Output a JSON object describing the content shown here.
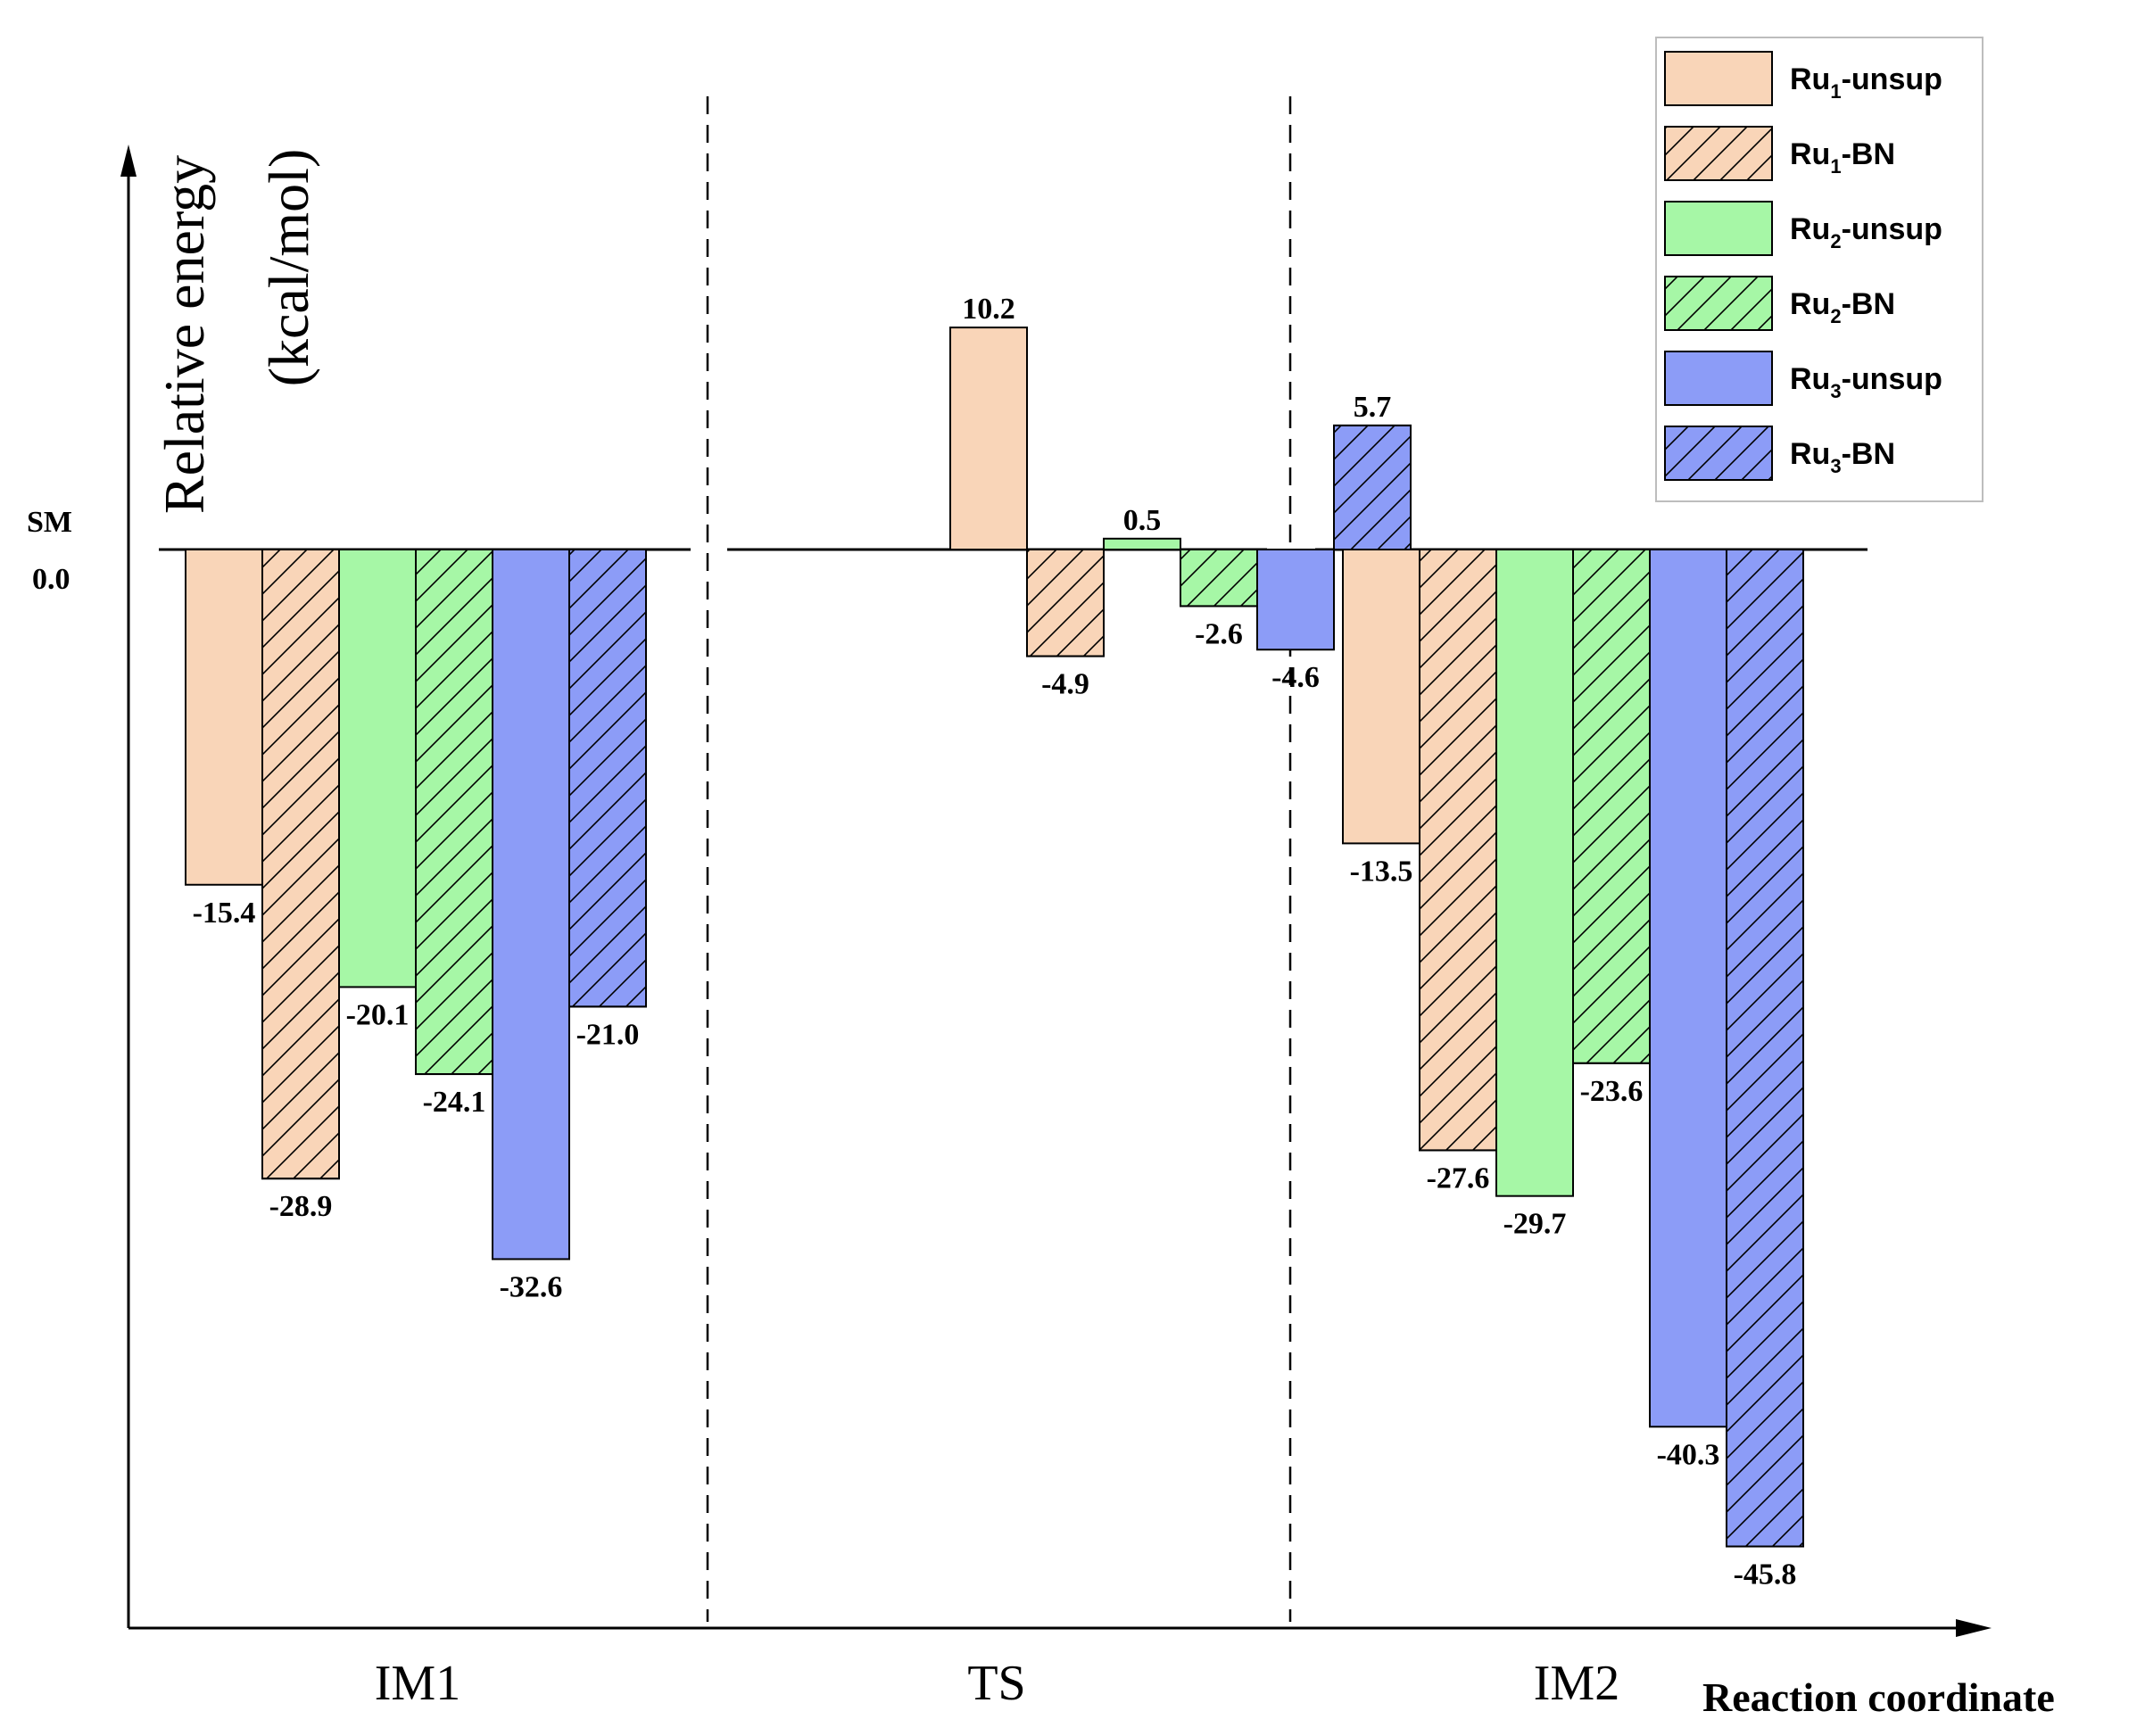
{
  "chart_data": {
    "type": "bar",
    "categories": [
      "IM1",
      "TS",
      "IM2"
    ],
    "ylabel_line1": "Relative energy",
    "ylabel_line2": "(kcal/mol)",
    "xlabel": "Reaction coordinate",
    "baseline_label_1": "SM",
    "baseline_label_2": "0.0",
    "ylim": [
      -50,
      12
    ],
    "legend_position": "top-right",
    "series": [
      {
        "name_base": "Ru",
        "name_sub": "1",
        "name_suffix": "-unsup",
        "color": "#F9D5B8",
        "hatched": false,
        "values": [
          -15.4,
          10.2,
          -13.5
        ],
        "labels": [
          "-15.4",
          "10.2",
          "-13.5"
        ]
      },
      {
        "name_base": "Ru",
        "name_sub": "1",
        "name_suffix": "-BN",
        "color": "#F9D5B8",
        "hatched": true,
        "values": [
          -28.9,
          -4.9,
          -27.6
        ],
        "labels": [
          "-28.9",
          "-4.9",
          "-27.6"
        ]
      },
      {
        "name_base": "Ru",
        "name_sub": "2",
        "name_suffix": "-unsup",
        "color": "#A6F7A6",
        "hatched": false,
        "values": [
          -20.1,
          0.5,
          -29.7
        ],
        "labels": [
          "-20.1",
          "0.5",
          "-29.7"
        ]
      },
      {
        "name_base": "Ru",
        "name_sub": "2",
        "name_suffix": "-BN",
        "color": "#A6F7A6",
        "hatched": true,
        "values": [
          -24.1,
          -2.6,
          -23.6
        ],
        "labels": [
          "-24.1",
          "-2.6",
          "-23.6"
        ]
      },
      {
        "name_base": "Ru",
        "name_sub": "3",
        "name_suffix": "-unsup",
        "color": "#8C9CF7",
        "hatched": false,
        "values": [
          -32.6,
          -4.6,
          -40.3
        ],
        "labels": [
          "-32.6",
          "-4.6",
          "-40.3"
        ]
      },
      {
        "name_base": "Ru",
        "name_sub": "3",
        "name_suffix": "-BN",
        "color": "#8C9CF7",
        "hatched": true,
        "values": [
          -21.0,
          5.7,
          -45.8
        ],
        "labels": [
          "-21.0",
          "5.7",
          "-45.8"
        ]
      }
    ]
  }
}
